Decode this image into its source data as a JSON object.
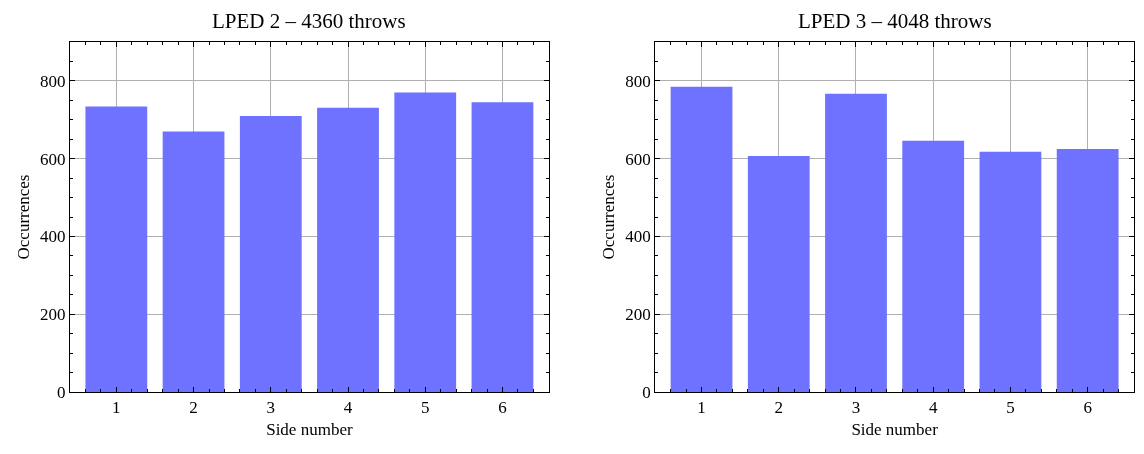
{
  "chart_data": [
    {
      "type": "bar",
      "title": "LPED 2 – 4360 throws",
      "xlabel": "Side number",
      "ylabel": "Occurrences",
      "categories": [
        "1",
        "2",
        "3",
        "4",
        "5",
        "6"
      ],
      "values": [
        734,
        670,
        710,
        731,
        770,
        745
      ],
      "color": "#6e72ff",
      "ylim": [
        0,
        900
      ],
      "yticks": [
        0,
        200,
        400,
        600,
        800
      ],
      "grid": true
    },
    {
      "type": "bar",
      "title": "LPED 3 – 4048 throws",
      "xlabel": "Side number",
      "ylabel": "Occurrences",
      "categories": [
        "1",
        "2",
        "3",
        "4",
        "5",
        "6"
      ],
      "values": [
        785,
        607,
        767,
        646,
        618,
        625
      ],
      "color": "#6e72ff",
      "ylim": [
        0,
        900
      ],
      "yticks": [
        0,
        200,
        400,
        600,
        800
      ],
      "grid": true
    }
  ]
}
